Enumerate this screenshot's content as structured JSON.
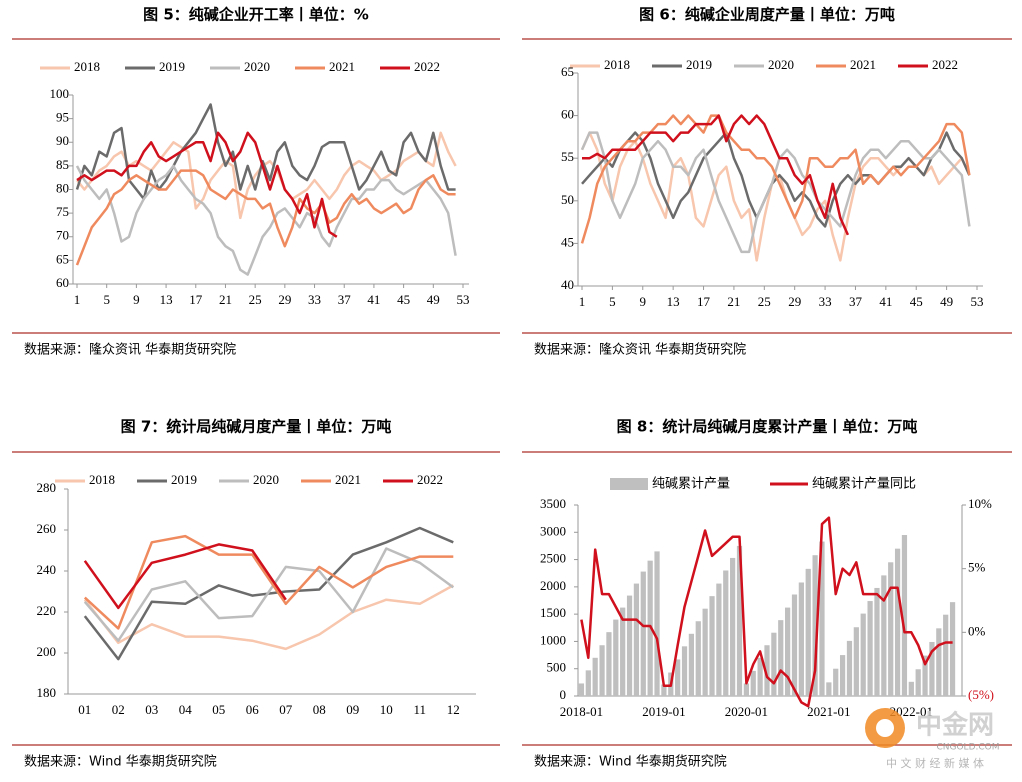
{
  "chart_data": [
    {
      "type": "line",
      "title": "图 5：纯碱企业开工率丨单位：%",
      "source": "数据来源：隆众资讯 华泰期货研究院",
      "x": [
        1,
        2,
        3,
        4,
        5,
        6,
        7,
        8,
        9,
        10,
        11,
        12,
        13,
        14,
        15,
        16,
        17,
        18,
        19,
        20,
        21,
        22,
        23,
        24,
        25,
        26,
        27,
        28,
        29,
        30,
        31,
        32,
        33,
        34,
        35,
        36,
        37,
        38,
        39,
        40,
        41,
        42,
        43,
        44,
        45,
        46,
        47,
        48,
        49,
        50,
        51,
        52
      ],
      "xlim": [
        1,
        53
      ],
      "xticks": [
        1,
        5,
        9,
        13,
        17,
        21,
        25,
        29,
        33,
        37,
        41,
        45,
        49,
        53
      ],
      "ylim": [
        60,
        100
      ],
      "yticks": [
        60,
        65,
        70,
        75,
        80,
        85,
        90,
        95,
        100
      ],
      "series": [
        {
          "name": "2018",
          "color": "#f7c6ad",
          "values": [
            82,
            80,
            82,
            84,
            85,
            87,
            88,
            85,
            86,
            85,
            84,
            86,
            88,
            90,
            89,
            88,
            76,
            78,
            82,
            84,
            86,
            85,
            74,
            80,
            83,
            85,
            86,
            84,
            80,
            78,
            79,
            80,
            82,
            80,
            78,
            80,
            83,
            85,
            86,
            85,
            84,
            82,
            83,
            84,
            86,
            87,
            88,
            86,
            85,
            92,
            88,
            85
          ]
        },
        {
          "name": "2019",
          "color": "#6b6b6b",
          "values": [
            80,
            85,
            83,
            88,
            87,
            92,
            93,
            82,
            80,
            78,
            84,
            80,
            82,
            85,
            88,
            90,
            92,
            95,
            98,
            90,
            85,
            88,
            80,
            85,
            80,
            86,
            82,
            88,
            90,
            85,
            83,
            82,
            85,
            89,
            90,
            90,
            90,
            85,
            80,
            82,
            85,
            88,
            84,
            83,
            90,
            92,
            88,
            86,
            92,
            85,
            80,
            80
          ]
        },
        {
          "name": "2020",
          "color": "#bdbdbd",
          "values": [
            85,
            82,
            80,
            78,
            80,
            75,
            69,
            70,
            75,
            78,
            80,
            82,
            83,
            85,
            82,
            80,
            78,
            77,
            75,
            70,
            68,
            67,
            63,
            62,
            66,
            70,
            72,
            75,
            76,
            74,
            72,
            75,
            74,
            70,
            68,
            72,
            75,
            78,
            78,
            80,
            80,
            82,
            82,
            80,
            79,
            80,
            81,
            82,
            80,
            78,
            75,
            66
          ]
        },
        {
          "name": "2021",
          "color": "#ef8a5f",
          "values": [
            64,
            68,
            72,
            74,
            76,
            79,
            80,
            82,
            83,
            82,
            81,
            80,
            80,
            82,
            84,
            84,
            84,
            83,
            80,
            79,
            78,
            80,
            79,
            78,
            78,
            76,
            77,
            72,
            68,
            72,
            78,
            76,
            75,
            77,
            73,
            74,
            77,
            79,
            77,
            78,
            76,
            75,
            76,
            77,
            75,
            76,
            80,
            82,
            83,
            80,
            79,
            79
          ]
        },
        {
          "name": "2022",
          "color": "#d0101c",
          "values": [
            82,
            83,
            82,
            83,
            84,
            84,
            83,
            85,
            85,
            88,
            90,
            87,
            86,
            87,
            88,
            89,
            90,
            90,
            86,
            92,
            90,
            86,
            88,
            92,
            90,
            85,
            80,
            85,
            80,
            78,
            75,
            79,
            72,
            78,
            71,
            70,
            null,
            null,
            null,
            null,
            null,
            null,
            null,
            null,
            null,
            null,
            null,
            null,
            null,
            null,
            null,
            null
          ]
        }
      ]
    },
    {
      "type": "line",
      "title": "图 6：纯碱企业周度产量丨单位：万吨",
      "source": "数据来源：隆众资讯 华泰期货研究院",
      "x": [
        1,
        2,
        3,
        4,
        5,
        6,
        7,
        8,
        9,
        10,
        11,
        12,
        13,
        14,
        15,
        16,
        17,
        18,
        19,
        20,
        21,
        22,
        23,
        24,
        25,
        26,
        27,
        28,
        29,
        30,
        31,
        32,
        33,
        34,
        35,
        36,
        37,
        38,
        39,
        40,
        41,
        42,
        43,
        44,
        45,
        46,
        47,
        48,
        49,
        50,
        51,
        52
      ],
      "xlim": [
        1,
        53
      ],
      "xticks": [
        1,
        5,
        9,
        13,
        17,
        21,
        25,
        29,
        33,
        37,
        41,
        45,
        49,
        53
      ],
      "ylim": [
        40,
        65
      ],
      "yticks": [
        40,
        45,
        50,
        55,
        60,
        65
      ],
      "series": [
        {
          "name": "2018",
          "color": "#f7c6ad",
          "values": [
            56,
            58,
            56,
            52,
            50,
            54,
            56,
            57,
            55,
            52,
            50,
            48,
            54,
            55,
            53,
            48,
            47,
            50,
            53,
            54,
            50,
            48,
            49,
            43,
            48,
            52,
            53,
            50,
            48,
            46,
            47,
            49,
            50,
            46,
            43,
            48,
            52,
            54,
            55,
            55,
            54,
            53,
            54,
            55,
            54,
            53,
            54,
            52,
            53,
            54,
            55,
            53
          ]
        },
        {
          "name": "2019",
          "color": "#6b6b6b",
          "values": [
            52,
            53,
            54,
            55,
            54,
            56,
            57,
            58,
            57,
            55,
            52,
            50,
            48,
            50,
            51,
            53,
            55,
            56,
            57,
            58,
            55,
            53,
            50,
            48,
            50,
            52,
            53,
            52,
            50,
            51,
            50,
            48,
            47,
            50,
            52,
            53,
            52,
            53,
            53,
            52,
            53,
            54,
            54,
            55,
            54,
            53,
            55,
            56,
            58,
            56,
            55,
            53
          ]
        },
        {
          "name": "2020",
          "color": "#bdbdbd",
          "values": [
            56,
            58,
            58,
            55,
            50,
            48,
            50,
            52,
            55,
            56,
            57,
            56,
            54,
            54,
            53,
            55,
            56,
            53,
            50,
            48,
            46,
            44,
            44,
            48,
            50,
            52,
            55,
            56,
            55,
            53,
            52,
            50,
            49,
            48,
            47,
            50,
            53,
            55,
            56,
            56,
            55,
            56,
            57,
            57,
            56,
            55,
            55,
            56,
            55,
            54,
            53,
            47
          ]
        },
        {
          "name": "2021",
          "color": "#ef8a5f",
          "values": [
            45,
            48,
            52,
            54,
            55,
            56,
            57,
            57,
            58,
            58,
            59,
            59,
            60,
            59,
            60,
            59,
            58,
            60,
            60,
            58,
            57,
            56,
            56,
            55,
            55,
            54,
            52,
            50,
            48,
            50,
            55,
            55,
            54,
            54,
            55,
            55,
            56,
            52,
            53,
            52,
            53,
            54,
            53,
            54,
            54,
            55,
            56,
            57,
            59,
            59,
            58,
            53
          ]
        },
        {
          "name": "2022",
          "color": "#d0101c",
          "values": [
            55,
            55,
            55.5,
            55,
            56,
            56,
            56,
            56,
            57,
            58,
            58,
            58,
            57,
            58,
            58,
            59,
            59,
            59,
            60,
            57,
            59,
            60,
            59,
            60,
            59,
            57,
            55,
            55,
            53,
            52,
            53,
            50,
            48,
            52,
            48,
            46,
            null,
            null,
            null,
            null,
            null,
            null,
            null,
            null,
            null,
            null,
            null,
            null,
            null,
            null,
            null,
            null
          ]
        }
      ]
    },
    {
      "type": "line",
      "title": "图 7：统计局纯碱月度产量丨单位：万吨",
      "source": "数据来源：Wind 华泰期货研究院",
      "categories": [
        "01",
        "02",
        "03",
        "04",
        "05",
        "06",
        "07",
        "08",
        "09",
        "10",
        "11",
        "12"
      ],
      "ylim": [
        180,
        280
      ],
      "yticks": [
        180,
        200,
        220,
        240,
        260,
        280
      ],
      "series": [
        {
          "name": "2018",
          "color": "#f7c6ad",
          "values": [
            226,
            205,
            214,
            208,
            208,
            206,
            202,
            209,
            220,
            226,
            224,
            233
          ]
        },
        {
          "name": "2019",
          "color": "#6b6b6b",
          "values": [
            218,
            197,
            225,
            224,
            233,
            228,
            230,
            231,
            248,
            254,
            261,
            254
          ]
        },
        {
          "name": "2020",
          "color": "#bdbdbd",
          "values": [
            225,
            206,
            231,
            235,
            217,
            218,
            242,
            240,
            220,
            251,
            244,
            232
          ]
        },
        {
          "name": "2021",
          "color": "#ef8a5f",
          "values": [
            227,
            212,
            254,
            257,
            248,
            248,
            224,
            242,
            232,
            242,
            247,
            247
          ]
        },
        {
          "name": "2022",
          "color": "#d0101c",
          "values": [
            245,
            222,
            244,
            248,
            253,
            250,
            226,
            null,
            null,
            null,
            null,
            null
          ]
        }
      ]
    },
    {
      "type": "bar_line",
      "title": "图 8：统计局纯碱月度累计产量丨单位：万吨",
      "source": "数据来源：Wind 华泰期货研究院",
      "categories": [
        "2018-01",
        null,
        null,
        null,
        null,
        null,
        null,
        null,
        null,
        null,
        null,
        null,
        "2019-01",
        null,
        null,
        null,
        null,
        null,
        null,
        null,
        null,
        null,
        null,
        null,
        "2020-01",
        null,
        null,
        null,
        null,
        null,
        null,
        null,
        null,
        null,
        null,
        null,
        "2021-01",
        null,
        null,
        null,
        null,
        null,
        null,
        null,
        null,
        null,
        null,
        null,
        "2022-01",
        null,
        null,
        null,
        null,
        null,
        null
      ],
      "ylim": [
        0,
        3500
      ],
      "yticks": [
        0,
        500,
        1000,
        1500,
        2000,
        2500,
        3000,
        3500
      ],
      "y2lim": [
        -5,
        10
      ],
      "y2ticks": [
        {
          "value": 10,
          "label": "10%"
        },
        {
          "value": 5,
          "label": "5%"
        },
        {
          "value": 0,
          "label": "0%"
        },
        {
          "value": -5,
          "label": "(5%)"
        }
      ],
      "series": [
        {
          "name": "纯碱累计产量",
          "type": "bar",
          "color": "#bfbfbf",
          "values": [
            230,
            470,
            700,
            930,
            1170,
            1400,
            1620,
            1840,
            2060,
            2280,
            2480,
            2650,
            210,
            430,
            670,
            910,
            1140,
            1370,
            1600,
            1830,
            2060,
            2300,
            2530,
            2750,
            230,
            460,
            700,
            930,
            1160,
            1390,
            1620,
            1860,
            2080,
            2330,
            2580,
            2830,
            250,
            500,
            750,
            1010,
            1260,
            1510,
            1740,
            1980,
            2210,
            2450,
            2700,
            2950,
            260,
            490,
            740,
            990,
            1240,
            1490,
            1720
          ]
        },
        {
          "name": "纯碱累计产量同比",
          "type": "line",
          "axis": "y2",
          "color": "#d0101c",
          "values": [
            1,
            -2,
            6.5,
            3,
            3,
            2,
            1,
            1,
            1,
            0.5,
            0.5,
            -0.5,
            -4.2,
            -4.2,
            -1,
            2,
            4,
            6,
            8,
            6,
            6.5,
            7,
            7.5,
            7.5,
            -4,
            -2.5,
            -1.5,
            -3.5,
            -4,
            -3,
            -3.5,
            -4.5,
            -5.5,
            -5.8,
            -3,
            8.5,
            9,
            3,
            5,
            4.5,
            5.5,
            3,
            3,
            3,
            2.5,
            3.5,
            3.5,
            0,
            0,
            -1,
            -2.5,
            -1.5,
            -1,
            -0.8,
            -0.8
          ]
        }
      ]
    }
  ],
  "watermark": {
    "name": "中金网",
    "site": "CNGOLD.COM",
    "slogan": "中 文 财 经 新 媒 体"
  }
}
